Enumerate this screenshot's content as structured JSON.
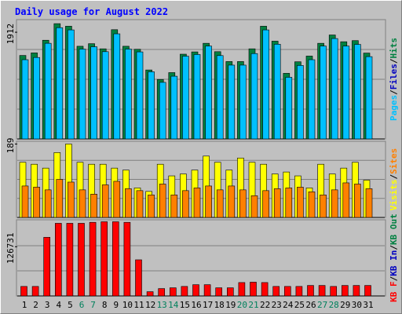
{
  "title": "Daily usage for August 2022",
  "colors": {
    "background": "#c0c0c0",
    "title": "#0000ff",
    "hits": "#008040",
    "files": "#00c0ff",
    "sites": "#ff8000",
    "visits": "#ffff00",
    "kbytes": "#ff0000",
    "weekend_day": "#00805c",
    "weekday": "#000000"
  },
  "chart_data": [
    {
      "type": "bar",
      "panel": "hits-files",
      "categories": [
        "1",
        "2",
        "3",
        "4",
        "5",
        "6",
        "7",
        "8",
        "9",
        "10",
        "11",
        "12",
        "13",
        "14",
        "15",
        "16",
        "17",
        "18",
        "19",
        "20",
        "21",
        "22",
        "23",
        "24",
        "25",
        "26",
        "27",
        "28",
        "29",
        "30",
        "31"
      ],
      "ytick_label": "1912",
      "ytick_value": 1912,
      "ylim": [
        0,
        2138
      ],
      "legend": [
        "Pages",
        "Files",
        "Hits"
      ],
      "series": [
        {
          "name": "Hits",
          "values": [
            1496,
            1542,
            1769,
            2066,
            2020,
            1661,
            1707,
            1615,
            1958,
            1661,
            1607,
            1236,
            1066,
            1189,
            1519,
            1560,
            1714,
            1564,
            1387,
            1387,
            1615,
            2020,
            1752,
            1176,
            1383,
            1485,
            1714,
            1863,
            1742,
            1762,
            1539
          ]
        },
        {
          "name": "Files",
          "values": [
            1420,
            1460,
            1714,
            1994,
            1954,
            1610,
            1652,
            1564,
            1884,
            1610,
            1560,
            1203,
            1014,
            1124,
            1483,
            1513,
            1664,
            1494,
            1323,
            1323,
            1530,
            1954,
            1697,
            1105,
            1317,
            1420,
            1664,
            1799,
            1664,
            1694,
            1475
          ]
        }
      ]
    },
    {
      "type": "bar",
      "panel": "visits-sites",
      "categories": [
        "1",
        "2",
        "3",
        "4",
        "5",
        "6",
        "7",
        "8",
        "9",
        "10",
        "11",
        "12",
        "13",
        "14",
        "15",
        "16",
        "17",
        "18",
        "19",
        "20",
        "21",
        "22",
        "23",
        "24",
        "25",
        "26",
        "27",
        "28",
        "29",
        "30",
        "31"
      ],
      "ytick_label": "189",
      "ytick_value": 189,
      "ylim": [
        0,
        196
      ],
      "legend": [
        "Visits",
        "Sites"
      ],
      "series": [
        {
          "name": "Visits",
          "values": [
            142,
            137,
            127,
            167,
            189,
            142,
            137,
            137,
            127,
            122,
            76,
            67,
            137,
            107,
            112,
            122,
            158,
            142,
            122,
            153,
            142,
            137,
            112,
            117,
            107,
            76,
            137,
            112,
            127,
            142,
            96
          ]
        },
        {
          "name": "Sites",
          "values": [
            81,
            78,
            71,
            98,
            91,
            71,
            60,
            84,
            93,
            74,
            69,
            58,
            86,
            58,
            69,
            76,
            81,
            71,
            81,
            71,
            56,
            69,
            74,
            76,
            78,
            66,
            58,
            71,
            89,
            86,
            74
          ]
        }
      ]
    },
    {
      "type": "bar",
      "panel": "kbytes",
      "categories": [
        "1",
        "2",
        "3",
        "4",
        "5",
        "6",
        "7",
        "8",
        "9",
        "10",
        "11",
        "12",
        "13",
        "14",
        "15",
        "16",
        "17",
        "18",
        "19",
        "20",
        "21",
        "22",
        "23",
        "24",
        "25",
        "26",
        "27",
        "28",
        "29",
        "30",
        "31"
      ],
      "ytick_label": "126731",
      "ytick_value": 126731,
      "ylim": [
        0,
        196000
      ],
      "legend": [
        "KB F",
        "KB In",
        "KB Out"
      ],
      "series": [
        {
          "name": "KB F",
          "values": [
            24500,
            24500,
            151000,
            187000,
            187000,
            187000,
            189500,
            191000,
            191000,
            189500,
            93000,
            11000,
            19000,
            21000,
            24500,
            29000,
            29000,
            21000,
            21000,
            34500,
            35500,
            34500,
            24500,
            24500,
            24500,
            27000,
            27000,
            24500,
            27000,
            27000,
            27000
          ]
        }
      ]
    }
  ]
}
